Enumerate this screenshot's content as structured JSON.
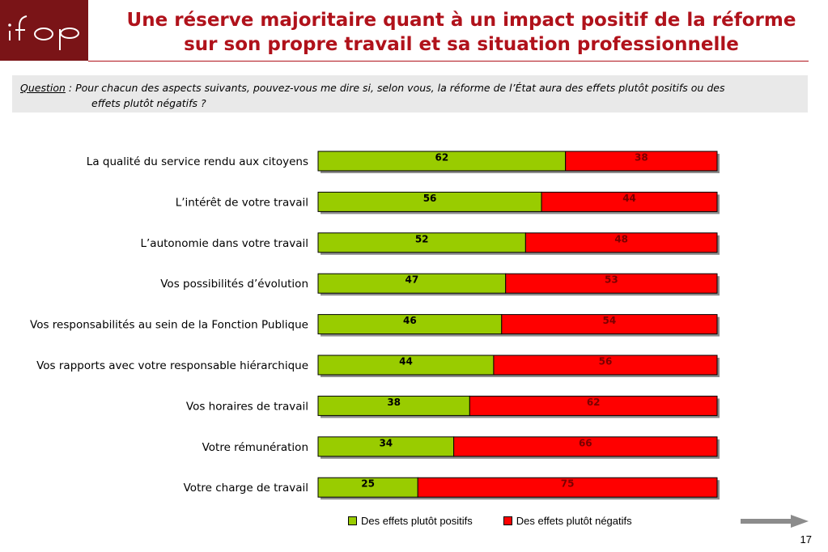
{
  "header": {
    "logo_text": "ifop",
    "title": "Une réserve majoritaire quant à un impact positif de la réforme sur son propre travail et sa situation professionnelle"
  },
  "question": {
    "label": "Question",
    "text_line1": " : Pour chacun des aspects suivants, pouvez-vous me dire si, selon vous, la réforme de l’État aura des effets plutôt positifs ou des",
    "text_line2": "effets plutôt négatifs ?"
  },
  "chart_data": {
    "type": "bar",
    "orientation": "horizontal",
    "stacked": true,
    "categories": [
      "La qualité du service rendu aux citoyens",
      "L’intérêt de votre travail",
      "L’autonomie dans votre travail",
      "Vos possibilités d’évolution",
      "Vos responsabilités au sein de la Fonction Publique",
      "Vos rapports avec votre responsable hiérarchique",
      "Vos horaires de travail",
      "Votre rémunération",
      "Votre charge de travail"
    ],
    "series": [
      {
        "name": "Des effets plutôt positifs",
        "color": "#99cc00",
        "values": [
          62,
          56,
          52,
          47,
          46,
          44,
          38,
          34,
          25
        ]
      },
      {
        "name": "Des effets plutôt négatifs",
        "color": "#ff0000",
        "values": [
          38,
          44,
          48,
          53,
          54,
          56,
          62,
          66,
          75
        ]
      }
    ],
    "xlim": [
      0,
      100
    ],
    "legend_position": "bottom"
  },
  "footer": {
    "arrow_icon": "right-arrow-icon",
    "page_number": "17"
  }
}
